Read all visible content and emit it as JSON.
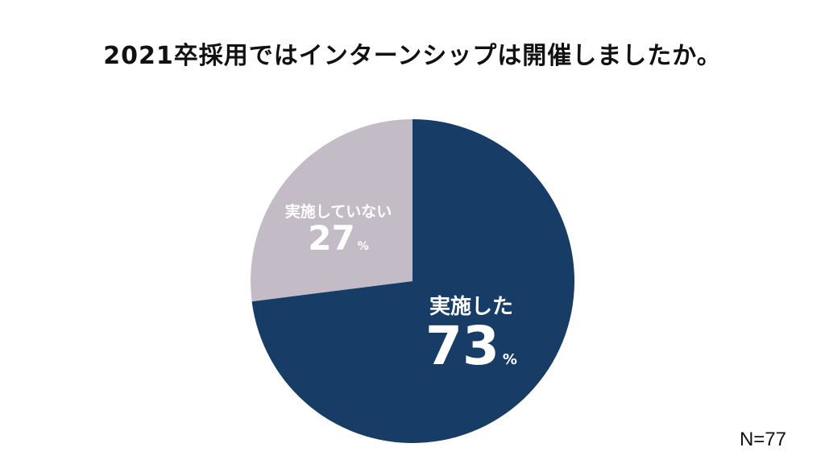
{
  "chart_data": {
    "type": "pie",
    "title": "2021卒採用ではインターンシップは開催しましたか。",
    "slices": [
      {
        "label": "実施した",
        "value": 73,
        "display": "73",
        "unit": "%",
        "color": "#173c66"
      },
      {
        "label": "実施していない",
        "value": 27,
        "display": "27",
        "unit": "%",
        "color": "#c3bcc7"
      }
    ],
    "start": "12 o'clock",
    "direction": "clockwise",
    "sample_size": "N=77"
  }
}
